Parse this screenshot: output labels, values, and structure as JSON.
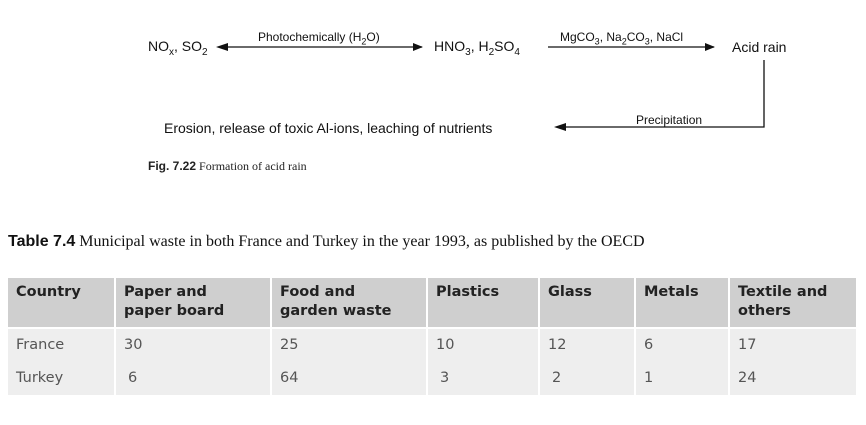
{
  "figure": {
    "nodes": {
      "nox_so2": "NOx, SO2",
      "hno3_h2so4": "HNO3, H2SO4",
      "acid_rain": "Acid rain",
      "effects": "Erosion, release of toxic Al-ions, leaching of nutrients"
    },
    "arrows": {
      "photochem": "Photochemically (H2O)",
      "neutralizers": "MgCO3, Na2CO3, NaCl",
      "precipitation": "Precipitation"
    },
    "caption_label": "Fig. 7.22",
    "caption_text": "Formation of acid rain"
  },
  "table": {
    "caption_label": "Table 7.4",
    "caption_text": "Municipal waste in both France and Turkey in the year 1993, as published by the OECD",
    "headers": [
      [
        "Country"
      ],
      [
        "Paper and",
        "paper board"
      ],
      [
        "Food and",
        "garden waste"
      ],
      [
        "Plastics"
      ],
      [
        "Glass"
      ],
      [
        "Metals"
      ],
      [
        "Textile and",
        "others"
      ]
    ],
    "rows": [
      [
        "France",
        "30",
        "25",
        "10",
        "12",
        "6",
        "17"
      ],
      [
        "Turkey",
        "6",
        "64",
        "3",
        "2",
        "1",
        "24"
      ]
    ]
  }
}
